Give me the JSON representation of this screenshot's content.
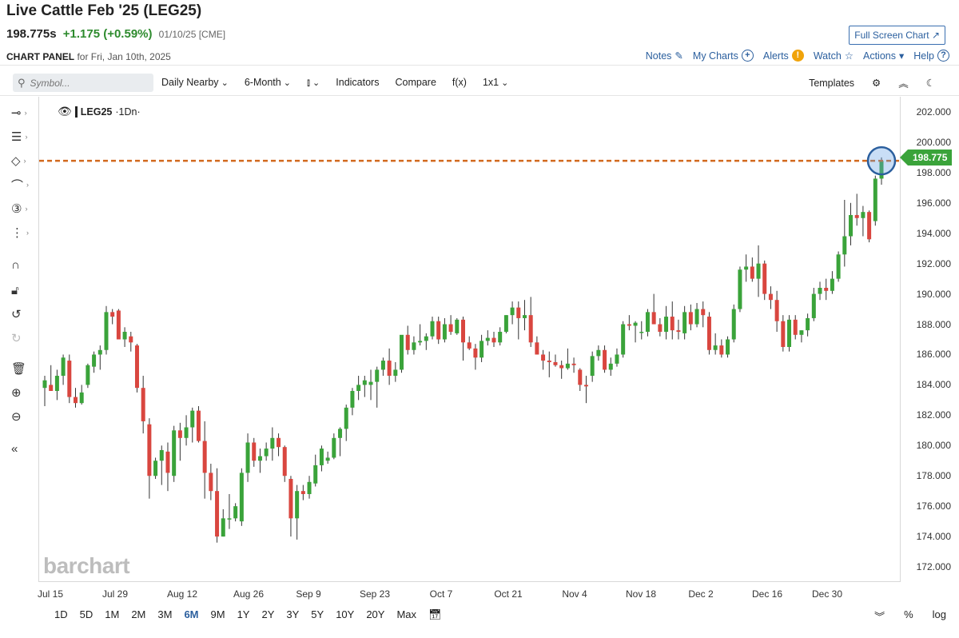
{
  "header": {
    "title": "Live Cattle Feb '25 (LEG25)",
    "last": "198.775s",
    "change": "+1.175 (+0.59%)",
    "date": "01/10/25 [CME]",
    "fullscreen_label": "Full Screen Chart ↗",
    "panel_label": "CHART PANEL",
    "panel_date": "for Fri, Jan 10th, 2025"
  },
  "toplinks": {
    "notes": "Notes",
    "my_charts": "My Charts",
    "alerts": "Alerts",
    "watch": "Watch",
    "actions": "Actions",
    "help": "Help"
  },
  "toolbar": {
    "search_placeholder": "Symbol...",
    "daily": "Daily Nearby",
    "period": "6-Month",
    "indicators": "Indicators",
    "compare": "Compare",
    "fx": "f(x)",
    "layout": "1x1",
    "templates": "Templates"
  },
  "legend": {
    "symbol": "LEG25",
    "interval": "·1Dn·"
  },
  "price_tag": "198.775",
  "watermark": "barchart",
  "colors": {
    "up": "#3aa33a",
    "down": "#d9463f",
    "accent": "#2b5f9e",
    "dash": "#d2691e"
  },
  "ranges": [
    "1D",
    "5D",
    "1M",
    "2M",
    "3M",
    "6M",
    "9M",
    "1Y",
    "2Y",
    "3Y",
    "5Y",
    "10Y",
    "20Y",
    "Max"
  ],
  "active_range": "6M",
  "bottom_right": {
    "percent": "%",
    "log": "log"
  },
  "chart_data": {
    "type": "candlestick",
    "ylim": [
      171,
      203
    ],
    "yticks": [
      "202.000",
      "200.000",
      "198.000",
      "196.000",
      "194.000",
      "192.000",
      "190.000",
      "188.000",
      "186.000",
      "184.000",
      "182.000",
      "180.000",
      "178.000",
      "176.000",
      "174.000",
      "172.000"
    ],
    "xticks": [
      "Jul 15",
      "Jul 29",
      "Aug 12",
      "Aug 26",
      "Sep 9",
      "Sep 23",
      "Oct 7",
      "Oct 21",
      "Nov 4",
      "Nov 18",
      "Dec 2",
      "Dec 16",
      "Dec 30"
    ],
    "last_price": 198.775,
    "candles": [
      [
        183.8,
        184.6,
        182.6,
        184.3
      ],
      [
        184.0,
        185.3,
        183.6,
        183.6
      ],
      [
        183.6,
        185.0,
        183.0,
        184.6
      ],
      [
        184.6,
        186.0,
        184.0,
        185.8
      ],
      [
        185.6,
        186.0,
        182.8,
        183.2
      ],
      [
        183.2,
        183.8,
        182.5,
        182.8
      ],
      [
        182.8,
        184.0,
        182.7,
        183.5
      ],
      [
        184.0,
        185.4,
        183.8,
        185.3
      ],
      [
        185.2,
        186.2,
        184.8,
        186.0
      ],
      [
        186.0,
        186.6,
        185.0,
        186.3
      ],
      [
        186.3,
        189.2,
        186.0,
        188.8
      ],
      [
        188.8,
        189.0,
        188.0,
        188.5
      ],
      [
        188.9,
        189.0,
        187.0,
        187.0
      ],
      [
        187.0,
        187.8,
        186.5,
        187.5
      ],
      [
        187.2,
        187.5,
        186.2,
        186.8
      ],
      [
        186.6,
        186.7,
        183.5,
        183.8
      ],
      [
        183.8,
        184.6,
        180.8,
        181.6
      ],
      [
        181.4,
        181.8,
        176.5,
        178.0
      ],
      [
        178.0,
        179.2,
        177.8,
        179.0
      ],
      [
        179.0,
        180.0,
        177.4,
        179.7
      ],
      [
        179.6,
        180.2,
        177.0,
        178.2
      ],
      [
        178.0,
        181.3,
        177.6,
        181.0
      ],
      [
        181.0,
        181.5,
        179.0,
        180.5
      ],
      [
        180.5,
        182.0,
        180.0,
        181.2
      ],
      [
        181.2,
        182.5,
        180.2,
        182.3
      ],
      [
        182.3,
        182.6,
        180.2,
        180.3
      ],
      [
        180.3,
        181.6,
        176.5,
        178.2
      ],
      [
        178.2,
        178.8,
        176.4,
        177.0
      ],
      [
        177.0,
        178.5,
        173.6,
        174.0
      ],
      [
        174.0,
        175.8,
        174.0,
        175.2
      ],
      [
        175.2,
        176.8,
        174.5,
        175.2
      ],
      [
        175.2,
        176.2,
        175.0,
        176.0
      ],
      [
        175.0,
        178.5,
        174.7,
        178.2
      ],
      [
        178.2,
        180.8,
        177.6,
        180.2
      ],
      [
        180.2,
        180.5,
        178.6,
        179.0
      ],
      [
        179.0,
        179.8,
        178.2,
        179.3
      ],
      [
        179.3,
        180.2,
        179.0,
        179.8
      ],
      [
        179.8,
        181.2,
        179.0,
        180.5
      ],
      [
        180.5,
        180.8,
        179.3,
        179.9
      ],
      [
        179.9,
        180.0,
        177.6,
        178.0
      ],
      [
        177.8,
        178.0,
        174.0,
        175.2
      ],
      [
        175.2,
        177.4,
        173.8,
        177.0
      ],
      [
        177.0,
        177.4,
        176.4,
        176.8
      ],
      [
        176.8,
        178.0,
        176.5,
        177.6
      ],
      [
        177.5,
        179.4,
        177.3,
        178.7
      ],
      [
        178.7,
        180.0,
        178.3,
        179.8
      ],
      [
        179.0,
        179.6,
        178.8,
        179.2
      ],
      [
        179.2,
        180.8,
        179.1,
        180.5
      ],
      [
        180.5,
        181.2,
        179.3,
        181.1
      ],
      [
        181.1,
        182.7,
        180.3,
        182.5
      ],
      [
        182.5,
        183.8,
        182.0,
        183.6
      ],
      [
        183.6,
        184.6,
        183.0,
        184.0
      ],
      [
        184.0,
        184.6,
        183.2,
        184.3
      ],
      [
        184.0,
        185.0,
        183.0,
        184.2
      ],
      [
        184.2,
        185.2,
        182.5,
        185.0
      ],
      [
        185.0,
        185.8,
        184.6,
        185.6
      ],
      [
        185.6,
        186.4,
        184.0,
        184.6
      ],
      [
        184.6,
        185.5,
        184.2,
        185.0
      ],
      [
        185.0,
        187.0,
        184.8,
        187.3
      ],
      [
        187.3,
        187.9,
        186.0,
        186.3
      ],
      [
        186.3,
        187.2,
        186.0,
        186.8
      ],
      [
        186.8,
        188.0,
        186.6,
        186.9
      ],
      [
        186.9,
        187.4,
        186.3,
        187.2
      ],
      [
        187.2,
        188.5,
        187.0,
        188.2
      ],
      [
        188.2,
        188.5,
        186.7,
        187.0
      ],
      [
        187.0,
        188.4,
        186.8,
        188.0
      ],
      [
        188.0,
        188.6,
        187.3,
        187.5
      ],
      [
        187.4,
        188.4,
        187.3,
        188.3
      ],
      [
        188.3,
        188.5,
        185.6,
        186.8
      ],
      [
        186.8,
        187.2,
        186.3,
        186.4
      ],
      [
        186.4,
        186.7,
        185.0,
        185.8
      ],
      [
        185.8,
        187.3,
        185.5,
        186.9
      ],
      [
        186.9,
        187.6,
        186.6,
        187.1
      ],
      [
        187.1,
        187.5,
        186.5,
        186.8
      ],
      [
        186.8,
        187.8,
        186.6,
        187.5
      ],
      [
        187.5,
        188.6,
        187.4,
        188.6
      ],
      [
        188.6,
        189.5,
        188.0,
        189.1
      ],
      [
        189.1,
        189.5,
        187.0,
        188.4
      ],
      [
        188.4,
        189.6,
        187.6,
        188.6
      ],
      [
        188.6,
        189.8,
        186.5,
        186.8
      ],
      [
        186.8,
        187.2,
        186.0,
        186.0
      ],
      [
        186.0,
        186.3,
        185.0,
        185.6
      ],
      [
        185.6,
        186.2,
        184.5,
        185.5
      ],
      [
        185.5,
        186.0,
        185.2,
        185.3
      ],
      [
        185.3,
        185.6,
        184.4,
        185.1
      ],
      [
        185.1,
        186.4,
        185.0,
        185.4
      ],
      [
        185.4,
        185.8,
        184.8,
        185.3
      ],
      [
        185.0,
        185.1,
        183.6,
        184.0
      ],
      [
        184.0,
        184.6,
        182.8,
        183.9
      ],
      [
        184.6,
        186.2,
        184.2,
        185.9
      ],
      [
        185.9,
        186.6,
        185.6,
        186.3
      ],
      [
        186.3,
        186.6,
        184.8,
        185.0
      ],
      [
        185.0,
        185.8,
        184.6,
        185.4
      ],
      [
        185.4,
        186.4,
        185.2,
        186.0
      ],
      [
        186.0,
        188.2,
        185.8,
        188.0
      ],
      [
        188.0,
        188.6,
        187.6,
        187.9
      ],
      [
        187.9,
        188.2,
        186.8,
        188.1
      ],
      [
        187.5,
        188.2,
        187.0,
        187.5
      ],
      [
        187.5,
        189.0,
        187.2,
        188.8
      ],
      [
        188.8,
        190.0,
        188.0,
        188.0
      ],
      [
        188.0,
        188.4,
        187.2,
        187.5
      ],
      [
        187.5,
        189.2,
        187.0,
        188.5
      ],
      [
        188.5,
        189.5,
        187.0,
        187.6
      ],
      [
        187.6,
        188.3,
        187.0,
        187.5
      ],
      [
        187.4,
        189.2,
        187.0,
        188.8
      ],
      [
        188.8,
        189.3,
        187.6,
        188.0
      ],
      [
        188.0,
        189.4,
        187.8,
        189.0
      ],
      [
        189.0,
        189.5,
        187.8,
        188.6
      ],
      [
        188.5,
        188.8,
        186.0,
        186.3
      ],
      [
        186.3,
        187.4,
        186.0,
        186.6
      ],
      [
        186.6,
        187.0,
        185.8,
        186.0
      ],
      [
        186.0,
        187.2,
        185.8,
        187.0
      ],
      [
        187.0,
        189.3,
        186.8,
        189.0
      ],
      [
        189.0,
        191.8,
        188.8,
        191.6
      ],
      [
        191.6,
        192.6,
        190.8,
        191.8
      ],
      [
        191.8,
        192.4,
        190.8,
        191.0
      ],
      [
        191.0,
        193.2,
        189.8,
        192.0
      ],
      [
        192.0,
        192.2,
        189.6,
        190.0
      ],
      [
        190.0,
        190.5,
        189.0,
        189.6
      ],
      [
        189.6,
        190.2,
        187.5,
        188.2
      ],
      [
        188.2,
        188.6,
        186.2,
        186.5
      ],
      [
        186.5,
        188.6,
        186.2,
        188.3
      ],
      [
        188.3,
        188.6,
        187.0,
        187.3
      ],
      [
        187.3,
        187.6,
        186.8,
        187.6
      ],
      [
        187.6,
        188.7,
        187.2,
        188.4
      ],
      [
        188.4,
        190.4,
        188.2,
        190.0
      ],
      [
        190.0,
        190.8,
        189.6,
        190.4
      ],
      [
        190.4,
        191.0,
        189.6,
        190.2
      ],
      [
        190.2,
        191.5,
        190.0,
        191.0
      ],
      [
        191.0,
        192.8,
        190.8,
        192.6
      ],
      [
        192.6,
        196.2,
        191.8,
        193.8
      ],
      [
        193.8,
        196.0,
        193.2,
        195.2
      ],
      [
        195.2,
        196.6,
        194.5,
        195.0
      ],
      [
        195.0,
        195.8,
        193.8,
        195.4
      ],
      [
        195.4,
        195.5,
        193.4,
        193.6
      ],
      [
        194.8,
        197.8,
        194.5,
        197.6
      ],
      [
        197.6,
        199.0,
        197.2,
        198.775
      ]
    ]
  }
}
